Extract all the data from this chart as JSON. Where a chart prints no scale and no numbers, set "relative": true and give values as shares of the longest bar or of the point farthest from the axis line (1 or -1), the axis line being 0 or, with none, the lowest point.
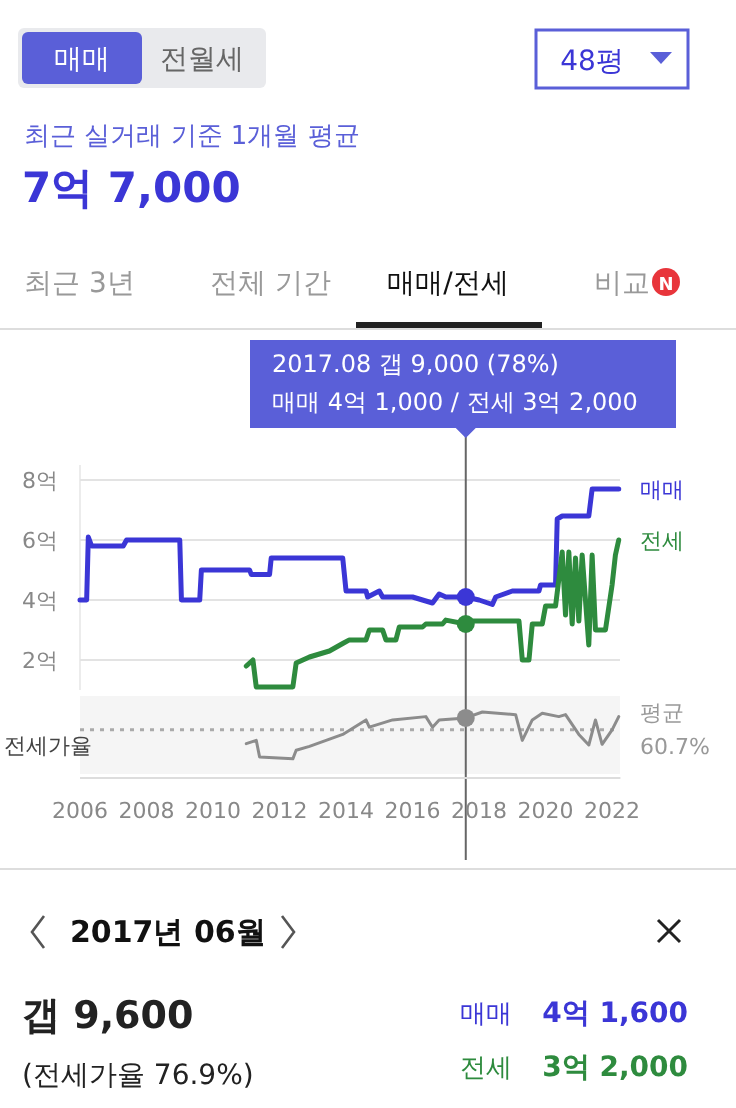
{
  "chart_data": [
    {
      "type": "other",
      "annotations": [
        "매매",
        "전월세",
        "48평",
        "최근 실거래 기준 1개월 평균",
        "7억 7,000",
        "최근 3년",
        "전체 기간",
        "매매/전세",
        "비교",
        "N"
      ]
    },
    {
      "type": "line",
      "xlim": [
        2006,
        2022.25
      ],
      "ylim": [
        1,
        8.5
      ],
      "yticks": [
        {
          "value": 2,
          "label": "2억"
        },
        {
          "value": 4,
          "label": "4억"
        },
        {
          "value": 6,
          "label": "6억"
        },
        {
          "value": 8,
          "label": "8억"
        }
      ],
      "grid": "y",
      "tick_labels": "y",
      "marker": "none",
      "line_style": "solid",
      "annotations": [
        "2017.08  갭 9,000 (78%)",
        "매매 4억 1,000 / 전세 3억 2,000"
      ],
      "ref_lines": [
        {
          "axis": "x",
          "value": 2017.6,
          "label": null,
          "color": "#666666"
        }
      ],
      "series": [
        {
          "name": "매매",
          "color": "#3b36d6",
          "x": [
            2006.0,
            2006.2,
            2006.25,
            2006.35,
            2006.6,
            2007.3,
            2007.4,
            2009.0,
            2009.05,
            2009.6,
            2009.65,
            2011.1,
            2011.15,
            2011.7,
            2011.75,
            2013.9,
            2014.0,
            2014.6,
            2014.65,
            2015.0,
            2015.1,
            2015.5,
            2016.0,
            2016.6,
            2016.8,
            2017.0,
            2017.6,
            2018.0,
            2018.4,
            2018.5,
            2019.0,
            2019.8,
            2019.85,
            2020.3,
            2020.35,
            2020.5,
            2020.6,
            2021.3,
            2021.4,
            2021.6,
            2022.2
          ],
          "values": [
            4.0,
            4.0,
            6.1,
            5.8,
            5.8,
            5.8,
            6.0,
            6.0,
            4.0,
            4.0,
            5.0,
            5.0,
            4.85,
            4.85,
            5.4,
            5.4,
            4.3,
            4.3,
            4.1,
            4.3,
            4.1,
            4.1,
            4.1,
            3.9,
            4.2,
            4.1,
            4.1,
            4.0,
            3.85,
            4.1,
            4.3,
            4.3,
            4.5,
            4.5,
            6.7,
            6.8,
            6.8,
            6.8,
            7.7,
            7.7,
            7.7
          ]
        },
        {
          "name": "전세",
          "color": "#2e8b3e",
          "x": [
            2011.0,
            2011.2,
            2011.3,
            2012.4,
            2012.5,
            2012.9,
            2013.5,
            2013.9,
            2014.1,
            2014.6,
            2014.7,
            2015.1,
            2015.2,
            2015.5,
            2015.6,
            2016.3,
            2016.4,
            2016.9,
            2017.0,
            2017.6,
            2017.7,
            2019.2,
            2019.3,
            2019.5,
            2019.6,
            2019.9,
            2020.0,
            2020.3,
            2020.5,
            2020.6,
            2020.7,
            2020.8,
            2020.9,
            2021.0,
            2021.1,
            2021.3,
            2021.4,
            2021.5,
            2021.8,
            2022.0,
            2022.1,
            2022.2
          ],
          "values": [
            1.8,
            2.0,
            1.1,
            1.1,
            1.9,
            2.1,
            2.3,
            2.55,
            2.67,
            2.67,
            3.0,
            3.0,
            2.67,
            2.67,
            3.1,
            3.1,
            3.2,
            3.2,
            3.33,
            3.2,
            3.3,
            3.3,
            2.0,
            2.0,
            3.2,
            3.2,
            3.8,
            3.8,
            5.6,
            3.5,
            5.6,
            3.2,
            5.4,
            3.3,
            5.5,
            2.5,
            5.5,
            3.0,
            3.0,
            4.5,
            5.5,
            6.0
          ]
        },
        {
          "type": "scatter",
          "marker": "circle",
          "color": "#3b36d6",
          "x": [
            2017.6
          ],
          "values": [
            4.1
          ]
        },
        {
          "type": "scatter",
          "marker": "circle",
          "color": "#2e8b3e",
          "x": [
            2017.6
          ],
          "values": [
            3.2
          ]
        }
      ]
    },
    {
      "type": "line",
      "relative": true,
      "xlim": [
        2006,
        2022.25
      ],
      "xticks": [
        2006,
        2008,
        2010,
        2012,
        2014,
        2016,
        2018,
        2020,
        2022
      ],
      "ylabel": "전세가율",
      "tick_labels": "x",
      "marker": "none",
      "line_style": "solid",
      "ref_lines": [
        {
          "axis": "y",
          "value": 0.73,
          "label": "평균 60.7%",
          "color": "#aaaaaa",
          "line_style": "dotted"
        },
        {
          "axis": "x",
          "value": 2017.6,
          "label": null,
          "color": "#666666"
        }
      ],
      "series": [
        {
          "color": "#8c8c8c",
          "x": [
            2011.0,
            2011.3,
            2011.4,
            2012.4,
            2012.5,
            2012.9,
            2013.9,
            2014.6,
            2014.7,
            2015.4,
            2016.4,
            2016.6,
            2016.8,
            2017.6,
            2018.1,
            2019.1,
            2019.3,
            2019.6,
            2019.9,
            2020.4,
            2020.6,
            2021.0,
            2021.3,
            2021.5,
            2021.7,
            2022.0,
            2022.2
          ],
          "values": [
            0.52,
            0.57,
            0.32,
            0.29,
            0.42,
            0.48,
            0.66,
            0.88,
            0.77,
            0.88,
            0.93,
            0.77,
            0.88,
            0.91,
            1,
            0.96,
            0.57,
            0.88,
            0.98,
            0.93,
            0.96,
            0.66,
            0.5,
            0.88,
            0.51,
            0.73,
            0.93
          ]
        },
        {
          "type": "scatter",
          "marker": "circle",
          "color": "#8c8c8c",
          "x": [
            2017.6
          ],
          "values": [
            0.91
          ]
        }
      ]
    },
    {
      "type": "other",
      "annotations": [
        "2017년 06월",
        "갭 9,600",
        "(전세가율 76.9%)",
        "매매",
        "4억 1,600",
        "전세",
        "3억 2,000"
      ]
    }
  ]
}
